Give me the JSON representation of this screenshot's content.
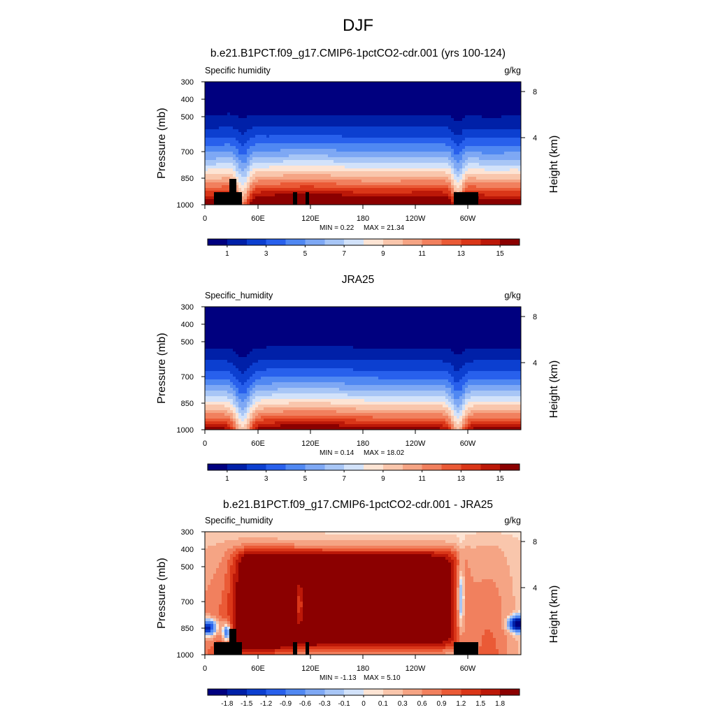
{
  "figure": {
    "title": "DJF"
  },
  "chart_data": [
    {
      "type": "heatmap",
      "title": "b.e21.B1PCT.f09_g17.CMIP6-1pctCO2-cdr.001 (yrs 100-124)",
      "variable_label": "Specific humidity",
      "units": "g/kg",
      "ylabel": "Pressure (mb)",
      "ylabel_right": "Height (km)",
      "x_ticks": [
        "0",
        "60E",
        "120E",
        "180",
        "120W",
        "60W"
      ],
      "y_ticks": [
        "300",
        "400",
        "500",
        "700",
        "850",
        "1000"
      ],
      "right_ticks": [
        "8",
        "4"
      ],
      "min_label": "MIN =   0.22",
      "max_label": "MAX =  21.34",
      "colorbar_labels": [
        "1",
        "3",
        "5",
        "7",
        "9",
        "11",
        "13",
        "15"
      ],
      "colorbar_levels": [
        0,
        1,
        2,
        3,
        4,
        5,
        6,
        7,
        8,
        9,
        10,
        11,
        12,
        13,
        14,
        15,
        16
      ],
      "palette": "absolute"
    },
    {
      "type": "heatmap",
      "title": "JRA25",
      "variable_label": "Specific_humidity",
      "units": "g/kg",
      "ylabel": "Pressure (mb)",
      "ylabel_right": "Height (km)",
      "x_ticks": [
        "0",
        "60E",
        "120E",
        "180",
        "120W",
        "60W"
      ],
      "y_ticks": [
        "300",
        "400",
        "500",
        "700",
        "850",
        "1000"
      ],
      "right_ticks": [
        "8",
        "4"
      ],
      "min_label": "MIN =   0.14",
      "max_label": "MAX =  18.02",
      "colorbar_labels": [
        "1",
        "3",
        "5",
        "7",
        "9",
        "11",
        "13",
        "15"
      ],
      "colorbar_levels": [
        0,
        1,
        2,
        3,
        4,
        5,
        6,
        7,
        8,
        9,
        10,
        11,
        12,
        13,
        14,
        15,
        16
      ],
      "palette": "absolute"
    },
    {
      "type": "heatmap",
      "title": "b.e21.B1PCT.f09_g17.CMIP6-1pctCO2-cdr.001 - JRA25",
      "variable_label": "Specific_humidity",
      "units": "g/kg",
      "ylabel": "Pressure (mb)",
      "ylabel_right": "Height (km)",
      "x_ticks": [
        "0",
        "60E",
        "120E",
        "180",
        "120W",
        "60W"
      ],
      "y_ticks": [
        "300",
        "400",
        "500",
        "700",
        "850",
        "1000"
      ],
      "right_ticks": [
        "8",
        "4"
      ],
      "min_label": "MIN =  -1.13",
      "max_label": "MAX =   5.10",
      "colorbar_labels": [
        "-1.8",
        "-1.5",
        "-1.2",
        "-0.9",
        "-0.6",
        "-0.3",
        "-0.1",
        "0",
        "0.1",
        "0.3",
        "0.6",
        "0.9",
        "1.2",
        "1.5",
        "1.8"
      ],
      "colorbar_levels": [
        -2.1,
        -1.8,
        -1.5,
        -1.2,
        -0.9,
        -0.6,
        -0.3,
        -0.1,
        0,
        0.1,
        0.3,
        0.6,
        0.9,
        1.2,
        1.5,
        1.8,
        2.1
      ],
      "palette": "difference"
    }
  ],
  "colors": {
    "palette": [
      "#00007f",
      "#0020a8",
      "#0c3fd0",
      "#2860ec",
      "#5088f2",
      "#7ea8f4",
      "#a8c6f6",
      "#d2e2fa",
      "#fde4d4",
      "#f9c6ac",
      "#f5a484",
      "#f1805e",
      "#ea5a36",
      "#da3618",
      "#bc1808",
      "#8b0000"
    ],
    "terrain": "#000000"
  }
}
